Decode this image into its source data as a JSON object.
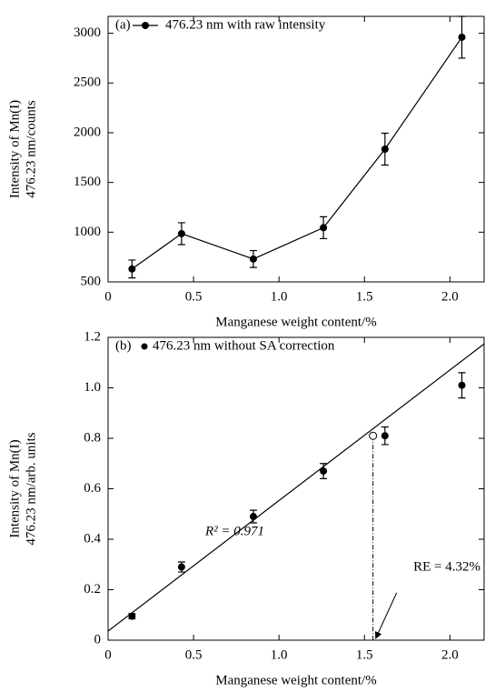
{
  "chart_data": [
    {
      "type": "line",
      "panel_label": "(a)",
      "x": [
        0.14,
        0.43,
        0.85,
        1.26,
        1.62,
        2.07
      ],
      "series": [
        {
          "name": "476.23 nm with raw intensity",
          "color": "#000000",
          "values": [
            630,
            985,
            730,
            1045,
            1835,
            2960
          ],
          "errors": [
            90,
            110,
            85,
            110,
            160,
            210
          ]
        }
      ],
      "xlabel": "Manganese weight content/%",
      "ylabel": [
        "Intensity of Mn(I)",
        "476.23 nm/counts"
      ],
      "xlim": [
        0,
        2.2
      ],
      "ylim": [
        500,
        3170
      ],
      "xticks": [
        0,
        0.5,
        {
          "value": 1,
          "label": "1.0"
        },
        1.5,
        {
          "value": 2,
          "label": "2.0"
        }
      ],
      "yticks": [
        500,
        1000,
        1500,
        2000,
        2500,
        3000
      ],
      "legend": "upper left"
    },
    {
      "type": "scatter",
      "panel_label": "(b)",
      "x": [
        0.14,
        0.43,
        0.85,
        1.26,
        1.62,
        2.07
      ],
      "series": [
        {
          "name": "476.23 nm without SA correction",
          "color": "#000000",
          "values": [
            0.095,
            0.29,
            0.49,
            0.67,
            0.81,
            1.01
          ],
          "errors": [
            0.01,
            0.02,
            0.025,
            0.03,
            0.035,
            0.05
          ]
        }
      ],
      "fit_line": {
        "x": [
          0,
          2.2
        ],
        "values": [
          0.036,
          1.174
        ]
      },
      "open_point": {
        "x": 1.55,
        "y": 0.81
      },
      "annotations": [
        "R² = 0.971",
        "RE = 4.32%"
      ],
      "xlabel": "Manganese weight content/%",
      "ylabel": [
        "Intensity of Mn(I)",
        "476.23 nm/arb. units"
      ],
      "xlim": [
        0,
        2.2
      ],
      "ylim": [
        0,
        1.2
      ],
      "xticks": [
        0,
        0.5,
        {
          "value": 1,
          "label": "1.0"
        },
        1.5,
        {
          "value": 2,
          "label": "2.0"
        }
      ],
      "yticks": [
        0,
        0.2,
        0.4,
        0.6,
        0.8,
        {
          "value": 1,
          "label": "1.0"
        },
        1.2
      ],
      "legend": "upper left"
    }
  ]
}
